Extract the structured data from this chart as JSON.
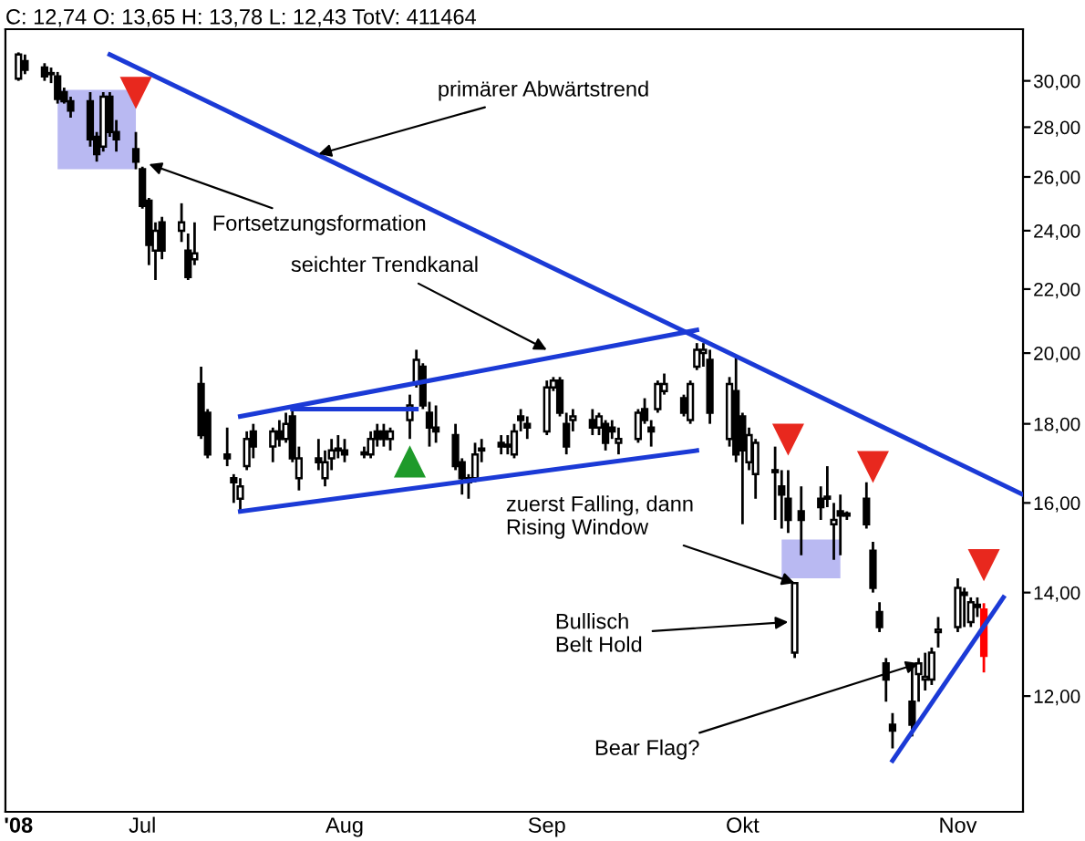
{
  "chart_data": {
    "type": "candlestick",
    "title": "C: 12,74 O: 13,65 H: 13,78 L: 12,43 TotV: 411464",
    "x": [
      "2008-06-12",
      "2008-06-13",
      "2008-06-16",
      "2008-06-17",
      "2008-06-18",
      "2008-06-19",
      "2008-06-20",
      "2008-06-23",
      "2008-06-24",
      "2008-06-25",
      "2008-06-26",
      "2008-06-27",
      "2008-06-30",
      "2008-07-01",
      "2008-07-02",
      "2008-07-03",
      "2008-07-04",
      "2008-07-07",
      "2008-07-08",
      "2008-07-09",
      "2008-07-10",
      "2008-07-11",
      "2008-07-14",
      "2008-07-15",
      "2008-07-16",
      "2008-07-17",
      "2008-07-18",
      "2008-07-21",
      "2008-07-22",
      "2008-07-23",
      "2008-07-24",
      "2008-07-25",
      "2008-07-28",
      "2008-07-29",
      "2008-07-30",
      "2008-07-31",
      "2008-08-01",
      "2008-08-04",
      "2008-08-05",
      "2008-08-06",
      "2008-08-07",
      "2008-08-08",
      "2008-08-11",
      "2008-08-12",
      "2008-08-13",
      "2008-08-14",
      "2008-08-15",
      "2008-08-18",
      "2008-08-19",
      "2008-08-20",
      "2008-08-21",
      "2008-08-22",
      "2008-08-25",
      "2008-08-26",
      "2008-08-27",
      "2008-08-28",
      "2008-08-29",
      "2008-09-01",
      "2008-09-02",
      "2008-09-03",
      "2008-09-04",
      "2008-09-05",
      "2008-09-08",
      "2008-09-09",
      "2008-09-10",
      "2008-09-11",
      "2008-09-12",
      "2008-09-15",
      "2008-09-16",
      "2008-09-17",
      "2008-09-18",
      "2008-09-19",
      "2008-09-22",
      "2008-09-23",
      "2008-09-24",
      "2008-09-25",
      "2008-09-26",
      "2008-09-29",
      "2008-09-30",
      "2008-10-01",
      "2008-10-02",
      "2008-10-03",
      "2008-10-06",
      "2008-10-07",
      "2008-10-08",
      "2008-10-09",
      "2008-10-10",
      "2008-10-13",
      "2008-10-14",
      "2008-10-15",
      "2008-10-16",
      "2008-10-17",
      "2008-10-20",
      "2008-10-21",
      "2008-10-22",
      "2008-10-23",
      "2008-10-24",
      "2008-10-27",
      "2008-10-28",
      "2008-10-29",
      "2008-10-30",
      "2008-10-31",
      "2008-11-03",
      "2008-11-04",
      "2008-11-05",
      "2008-11-06",
      "2008-11-07"
    ],
    "ohlc": [
      [
        30.1,
        31.3,
        30.0,
        31.2
      ],
      [
        30.9,
        31.2,
        30.3,
        30.5
      ],
      [
        30.6,
        30.8,
        30.0,
        30.2
      ],
      [
        30.3,
        30.6,
        29.9,
        30.35
      ],
      [
        30.2,
        30.4,
        29.0,
        29.2
      ],
      [
        29.5,
        29.7,
        29.0,
        29.1
      ],
      [
        29.1,
        29.3,
        28.4,
        28.7
      ],
      [
        29.1,
        29.5,
        27.2,
        27.5
      ],
      [
        27.6,
        27.8,
        26.6,
        26.9
      ],
      [
        27.2,
        29.5,
        27.0,
        29.3
      ],
      [
        29.3,
        29.5,
        27.6,
        27.8
      ],
      [
        27.8,
        28.3,
        27.0,
        27.5
      ],
      [
        27.1,
        27.8,
        26.3,
        26.6
      ],
      [
        26.3,
        26.4,
        24.8,
        24.9
      ],
      [
        25.1,
        25.2,
        22.8,
        23.5
      ],
      [
        23.3,
        24.3,
        22.3,
        24.0
      ],
      [
        24.3,
        24.5,
        23.0,
        23.3
      ],
      [
        24.0,
        25.0,
        23.6,
        24.3
      ],
      [
        23.3,
        23.9,
        22.3,
        22.4
      ],
      [
        23.0,
        24.3,
        22.8,
        23.2
      ],
      [
        19.1,
        19.6,
        17.6,
        17.7
      ],
      [
        18.3,
        18.4,
        17.1,
        17.2
      ],
      [
        17.2,
        17.9,
        16.9,
        17.1
      ],
      [
        16.6,
        16.7,
        16.0,
        16.5
      ],
      [
        16.1,
        16.6,
        15.8,
        16.4
      ],
      [
        16.9,
        17.8,
        16.8,
        17.6
      ],
      [
        17.8,
        18.0,
        17.1,
        17.4
      ],
      [
        17.4,
        17.9,
        17.0,
        17.8
      ],
      [
        17.8,
        18.1,
        17.4,
        17.6
      ],
      [
        17.6,
        18.3,
        17.5,
        18.0
      ],
      [
        18.2,
        18.4,
        17.0,
        17.1
      ],
      [
        16.6,
        17.4,
        16.3,
        17.1
      ],
      [
        17.1,
        17.6,
        16.8,
        17.0
      ],
      [
        16.6,
        17.3,
        16.4,
        17.0
      ],
      [
        17.1,
        17.6,
        16.8,
        17.3
      ],
      [
        17.35,
        17.7,
        17.1,
        17.3
      ],
      [
        17.3,
        17.6,
        17.0,
        17.2
      ],
      [
        17.25,
        17.4,
        17.1,
        17.2
      ],
      [
        17.2,
        17.8,
        17.1,
        17.6
      ],
      [
        17.8,
        18.0,
        17.4,
        17.6
      ],
      [
        17.8,
        18.0,
        17.4,
        17.6
      ],
      [
        17.6,
        17.9,
        17.3,
        17.8
      ],
      [
        18.1,
        18.8,
        17.6,
        18.5
      ],
      [
        19.1,
        20.1,
        19.0,
        19.8
      ],
      [
        19.6,
        19.7,
        18.4,
        18.5
      ],
      [
        18.3,
        18.6,
        17.4,
        17.9
      ],
      [
        17.9,
        18.5,
        17.5,
        17.8
      ],
      [
        17.7,
        18.0,
        16.8,
        16.9
      ],
      [
        17.0,
        17.1,
        16.2,
        16.6
      ],
      [
        16.6,
        16.7,
        16.1,
        16.5
      ],
      [
        16.6,
        17.5,
        16.5,
        17.2
      ],
      [
        17.3,
        17.6,
        17.0,
        17.35
      ],
      [
        17.5,
        17.7,
        17.2,
        17.4
      ],
      [
        17.4,
        17.7,
        17.2,
        17.45
      ],
      [
        17.2,
        18.0,
        17.1,
        17.8
      ],
      [
        18.2,
        18.4,
        17.8,
        18.1
      ],
      [
        18.0,
        18.2,
        17.6,
        17.9
      ],
      [
        17.8,
        19.2,
        17.7,
        19.0
      ],
      [
        19.0,
        19.3,
        18.9,
        19.2
      ],
      [
        19.2,
        19.3,
        18.2,
        18.3
      ],
      [
        18.0,
        18.3,
        17.2,
        17.4
      ],
      [
        18.1,
        18.4,
        17.8,
        18.2
      ],
      [
        18.1,
        18.4,
        17.7,
        17.9
      ],
      [
        17.9,
        18.3,
        17.7,
        18.2
      ],
      [
        18.0,
        18.1,
        17.3,
        17.5
      ],
      [
        17.9,
        18.1,
        17.6,
        17.8
      ],
      [
        17.5,
        17.9,
        17.2,
        17.6
      ],
      [
        17.6,
        18.4,
        17.5,
        18.3
      ],
      [
        18.4,
        18.7,
        18.0,
        18.1
      ],
      [
        17.9,
        18.1,
        17.4,
        17.8
      ],
      [
        18.4,
        19.2,
        18.3,
        19.1
      ],
      [
        18.9,
        19.4,
        18.8,
        19.1
      ],
      [
        18.7,
        18.8,
        18.2,
        18.3
      ],
      [
        18.1,
        19.2,
        18.0,
        19.1
      ],
      [
        19.6,
        20.3,
        19.5,
        20.1
      ],
      [
        20.0,
        20.3,
        19.6,
        20.1
      ],
      [
        19.8,
        20.1,
        18.0,
        18.3
      ],
      [
        17.6,
        19.3,
        17.4,
        19.1
      ],
      [
        18.9,
        19.9,
        17.0,
        17.2
      ],
      [
        18.2,
        18.3,
        15.5,
        17.3
      ],
      [
        17.0,
        17.9,
        16.8,
        17.7
      ],
      [
        16.7,
        17.6,
        16.1,
        17.5
      ],
      [
        16.8,
        17.4,
        15.6,
        16.75
      ],
      [
        16.4,
        16.8,
        15.4,
        16.2
      ],
      [
        16.1,
        16.8,
        15.3,
        15.6
      ],
      [
        12.8,
        14.2,
        12.7,
        14.2
      ],
      [
        15.8,
        16.4,
        14.8,
        15.6
      ],
      [
        16.1,
        16.4,
        15.6,
        15.9
      ],
      [
        16.1,
        16.9,
        15.9,
        16.15
      ],
      [
        15.5,
        16.0,
        14.7,
        15.6
      ],
      [
        15.8,
        16.2,
        14.8,
        15.7
      ],
      [
        15.7,
        15.8,
        15.6,
        15.75
      ],
      [
        16.1,
        16.5,
        15.4,
        15.5
      ],
      [
        14.9,
        15.1,
        14.0,
        14.1
      ],
      [
        13.6,
        13.8,
        13.2,
        13.3
      ],
      [
        12.6,
        12.7,
        11.9,
        12.3
      ],
      [
        11.5,
        11.7,
        11.1,
        11.4
      ],
      [
        11.9,
        12.6,
        11.3,
        11.5
      ],
      [
        12.4,
        12.7,
        11.9,
        12.6
      ],
      [
        12.3,
        12.8,
        12.1,
        12.35
      ],
      [
        12.3,
        12.9,
        12.2,
        12.8
      ],
      [
        13.2,
        13.5,
        12.9,
        13.25
      ],
      [
        13.3,
        14.3,
        13.2,
        14.1
      ],
      [
        14.0,
        14.1,
        13.3,
        13.95
      ],
      [
        13.4,
        13.9,
        13.3,
        13.8
      ],
      [
        13.7,
        13.9,
        13.5,
        13.75
      ],
      [
        13.65,
        13.78,
        12.43,
        12.74
      ]
    ],
    "colors": [
      "#ffffff",
      "#000000",
      "#000000",
      "#ffffff",
      "#000000",
      "#000000",
      "#000000",
      "#000000",
      "#000000",
      "#ffffff",
      "#000000",
      "#000000",
      "#000000",
      "#000000",
      "#000000",
      "#ffffff",
      "#000000",
      "#ffffff",
      "#000000",
      "#ffffff",
      "#000000",
      "#000000",
      "#000000",
      "#000000",
      "#ffffff",
      "#ffffff",
      "#000000",
      "#ffffff",
      "#000000",
      "#ffffff",
      "#000000",
      "#ffffff",
      "#000000",
      "#ffffff",
      "#ffffff",
      "#000000",
      "#000000",
      "#000000",
      "#ffffff",
      "#000000",
      "#000000",
      "#ffffff",
      "#ffffff",
      "#ffffff",
      "#000000",
      "#000000",
      "#000000",
      "#000000",
      "#000000",
      "#000000",
      "#ffffff",
      "#ffffff",
      "#000000",
      "#ffffff",
      "#ffffff",
      "#000000",
      "#000000",
      "#ffffff",
      "#ffffff",
      "#000000",
      "#000000",
      "#ffffff",
      "#000000",
      "#ffffff",
      "#000000",
      "#000000",
      "#ffffff",
      "#ffffff",
      "#000000",
      "#000000",
      "#ffffff",
      "#ffffff",
      "#000000",
      "#ffffff",
      "#ffffff",
      "#ffffff",
      "#000000",
      "#ffffff",
      "#000000",
      "#000000",
      "#ffffff",
      "#ffffff",
      "#000000",
      "#000000",
      "#000000",
      "#ffffff",
      "#000000",
      "#000000",
      "#ffffff",
      "#ffffff",
      "#000000",
      "#ffffff",
      "#000000",
      "#000000",
      "#000000",
      "#000000",
      "#000000",
      "#000000",
      "#ffffff",
      "#ffffff",
      "#ffffff",
      "#ffffff",
      "#ffffff",
      "#000000",
      "#ffffff",
      "#ffffff",
      "#ff0000"
    ],
    "series": [
      {
        "type": "line",
        "color": "#1b3ad6",
        "x": [
          "2008-06-26",
          "2008-11-13"
        ],
        "values": [
          31.2,
          16.2
        ]
      },
      {
        "type": "line",
        "color": "#1b3ad6",
        "x": [
          "2008-07-16",
          "2008-09-24"
        ],
        "values": [
          18.2,
          20.7
        ]
      },
      {
        "type": "line",
        "color": "#1b3ad6",
        "x": [
          "2008-07-16",
          "2008-09-24"
        ],
        "values": [
          15.8,
          17.3
        ]
      },
      {
        "type": "line",
        "color": "#1b3ad6",
        "x": [
          "2008-07-24",
          "2008-08-12"
        ],
        "values": [
          18.4,
          18.4
        ]
      },
      {
        "type": "line",
        "color": "#1b3ad6",
        "x": [
          "2008-10-24",
          "2008-11-10"
        ],
        "values": [
          10.9,
          13.9
        ]
      },
      {
        "type": "scatter",
        "color": "#e8281e",
        "marker": "triangle",
        "x": [
          "2008-06-30",
          "2008-10-08",
          "2008-10-21",
          "2008-11-07"
        ],
        "values": [
          29.5,
          17.6,
          16.9,
          14.6
        ]
      },
      {
        "type": "scatter",
        "color": "#1e9a2a",
        "marker": "triangle",
        "x": [
          "2008-08-11"
        ],
        "values": [
          17.0
        ]
      }
    ],
    "annotations": [
      {
        "text": "primärer Abwärtstrend",
        "x": "2008-07-28",
        "y": 26.9
      },
      {
        "text": "Fortsetzungsformation",
        "x": "2008-07-02",
        "y": 26.5
      },
      {
        "text": "seichter Trendkanal",
        "x": "2008-09-01",
        "y": 20.1
      },
      {
        "text": "zuerst Falling, dann\nRising Window",
        "x": "2008-10-09",
        "y": 14.2
      },
      {
        "text": "Bullisch\nBelt Hold",
        "x": "2008-10-08",
        "y": 13.4
      },
      {
        "text": "Bear Flag?",
        "x": "2008-10-28",
        "y": 12.6
      }
    ],
    "log": "y",
    "xlim": [
      "2008-06-10",
      "2008-11-13"
    ],
    "xticks": [
      {
        "value": "2008-06-12",
        "label": "'08"
      },
      {
        "value": "2008-07-01",
        "label": "Jul"
      },
      {
        "value": "2008-08-01",
        "label": "Aug"
      },
      {
        "value": "2008-09-01",
        "label": "Sep"
      },
      {
        "value": "2008-10-01",
        "label": "Okt"
      },
      {
        "value": "2008-11-03",
        "label": "Nov"
      }
    ],
    "ylim": [
      10.1,
      32.4
    ],
    "yticks": [
      {
        "value": 12,
        "label": "12,00"
      },
      {
        "value": 14,
        "label": "14,00"
      },
      {
        "value": 16,
        "label": "16,00"
      },
      {
        "value": 18,
        "label": "18,00"
      },
      {
        "value": 20,
        "label": "20,00"
      },
      {
        "value": 22,
        "label": "22,00"
      },
      {
        "value": 24,
        "label": "24,00"
      },
      {
        "value": 26,
        "label": "26,00"
      },
      {
        "value": 28,
        "label": "28,00"
      },
      {
        "value": 30,
        "label": "30,00"
      }
    ],
    "grid": false,
    "legend": false
  }
}
